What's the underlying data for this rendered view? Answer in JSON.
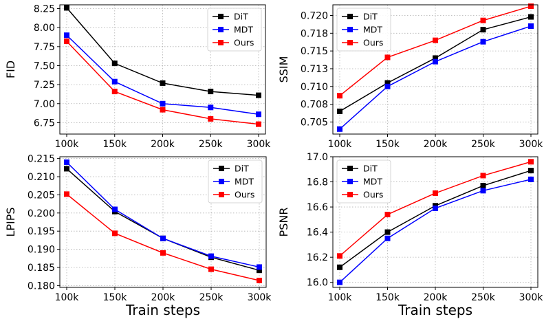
{
  "chart_data": [
    {
      "type": "line",
      "title": "",
      "xlabel": "",
      "ylabel": "FID",
      "categories": [
        "100k",
        "150k",
        "200k",
        "250k",
        "300k"
      ],
      "ylim": [
        6.6,
        8.3
      ],
      "yticks": [
        6.75,
        7.0,
        7.25,
        7.5,
        7.75,
        8.0,
        8.25
      ],
      "ytick_labels": [
        "6.75",
        "7.00",
        "7.25",
        "7.50",
        "7.75",
        "8.00",
        "8.25"
      ],
      "grid": true,
      "legend": "top-right",
      "series": [
        {
          "name": "DiT",
          "color": "#000000",
          "values": [
            8.26,
            7.53,
            7.27,
            7.16,
            7.11
          ]
        },
        {
          "name": "MDT",
          "color": "#0000ff",
          "values": [
            7.9,
            7.29,
            7.0,
            6.95,
            6.86
          ]
        },
        {
          "name": "Ours",
          "color": "#ff0000",
          "values": [
            7.82,
            7.16,
            6.92,
            6.8,
            6.73
          ]
        }
      ]
    },
    {
      "type": "line",
      "title": "",
      "xlabel": "",
      "ylabel": "SSIM",
      "categories": [
        "100k",
        "150k",
        "200k",
        "250k",
        "300k"
      ],
      "ylim": [
        0.7033,
        0.7215
      ],
      "yticks": [
        0.705,
        0.7075,
        0.71,
        0.7125,
        0.715,
        0.7175,
        0.72
      ],
      "ytick_labels": [
        "0.705",
        "0.708",
        "0.710",
        "0.713",
        "0.715",
        "0.718",
        "0.720"
      ],
      "grid": true,
      "legend": "top-left",
      "series": [
        {
          "name": "DiT",
          "color": "#000000",
          "values": [
            0.7065,
            0.7105,
            0.714,
            0.718,
            0.7198
          ]
        },
        {
          "name": "MDT",
          "color": "#0000ff",
          "values": [
            0.704,
            0.71,
            0.7135,
            0.7163,
            0.7185
          ]
        },
        {
          "name": "Ours",
          "color": "#ff0000",
          "values": [
            0.7087,
            0.7141,
            0.7165,
            0.7193,
            0.7213
          ]
        }
      ]
    },
    {
      "type": "line",
      "title": "",
      "xlabel": "Train steps",
      "ylabel": "LPIPS",
      "categories": [
        "100k",
        "150k",
        "200k",
        "250k",
        "300k"
      ],
      "ylim": [
        0.1795,
        0.2155
      ],
      "yticks": [
        0.18,
        0.185,
        0.19,
        0.195,
        0.2,
        0.205,
        0.21,
        0.215
      ],
      "ytick_labels": [
        "0.180",
        "0.185",
        "0.190",
        "0.195",
        "0.200",
        "0.205",
        "0.210",
        "0.215"
      ],
      "grid": true,
      "legend": "top-right",
      "series": [
        {
          "name": "DiT",
          "color": "#000000",
          "values": [
            0.2122,
            0.2004,
            0.193,
            0.1878,
            0.1842
          ]
        },
        {
          "name": "MDT",
          "color": "#0000ff",
          "values": [
            0.214,
            0.201,
            0.193,
            0.1881,
            0.1851
          ]
        },
        {
          "name": "Ours",
          "color": "#ff0000",
          "values": [
            0.2052,
            0.1944,
            0.189,
            0.1845,
            0.1814
          ]
        }
      ]
    },
    {
      "type": "line",
      "title": "",
      "xlabel": "Train steps",
      "ylabel": "PSNR",
      "categories": [
        "100k",
        "150k",
        "200k",
        "250k",
        "300k"
      ],
      "ylim": [
        15.96,
        17.0
      ],
      "yticks": [
        16.0,
        16.2,
        16.4,
        16.6,
        16.8,
        17.0
      ],
      "ytick_labels": [
        "16.0",
        "16.2",
        "16.4",
        "16.6",
        "16.8",
        "17.0"
      ],
      "grid": true,
      "legend": "top-left",
      "series": [
        {
          "name": "DiT",
          "color": "#000000",
          "values": [
            16.12,
            16.4,
            16.61,
            16.77,
            16.89
          ]
        },
        {
          "name": "MDT",
          "color": "#0000ff",
          "values": [
            16.0,
            16.35,
            16.59,
            16.73,
            16.82
          ]
        },
        {
          "name": "Ours",
          "color": "#ff0000",
          "values": [
            16.21,
            16.54,
            16.71,
            16.85,
            16.96
          ]
        }
      ]
    }
  ]
}
